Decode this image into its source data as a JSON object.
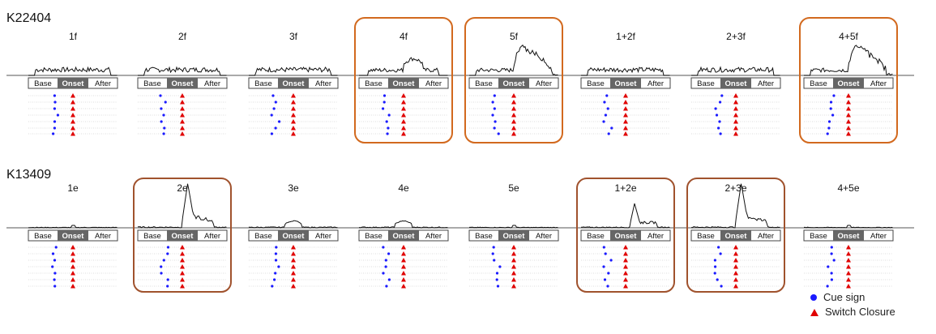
{
  "chart_data": {
    "type": "line",
    "segments": [
      "Base",
      "Onset",
      "After"
    ],
    "colors": {
      "trace": "#111111",
      "cue": "#1a1aff",
      "switch": "#e00000",
      "highlight_top": "#d2691e",
      "highlight_bottom": "#a0522d",
      "onset_fill": "#666666"
    },
    "panels": [
      {
        "id": "K22404",
        "conditions": [
          {
            "label": "1f",
            "highlighted": false,
            "response": "low"
          },
          {
            "label": "2f",
            "highlighted": false,
            "response": "low"
          },
          {
            "label": "3f",
            "highlighted": false,
            "response": "low"
          },
          {
            "label": "4f",
            "highlighted": true,
            "response": "medium"
          },
          {
            "label": "5f",
            "highlighted": true,
            "response": "high"
          },
          {
            "label": "1+2f",
            "highlighted": false,
            "response": "low"
          },
          {
            "label": "2+3f",
            "highlighted": false,
            "response": "low"
          },
          {
            "label": "4+5f",
            "highlighted": true,
            "response": "high"
          }
        ]
      },
      {
        "id": "K13409",
        "conditions": [
          {
            "label": "1e",
            "highlighted": false,
            "response": "none"
          },
          {
            "label": "2e",
            "highlighted": true,
            "response": "peak"
          },
          {
            "label": "3e",
            "highlighted": false,
            "response": "small"
          },
          {
            "label": "4e",
            "highlighted": false,
            "response": "small"
          },
          {
            "label": "5e",
            "highlighted": false,
            "response": "none"
          },
          {
            "label": "1+2e",
            "highlighted": true,
            "response": "medium-peak"
          },
          {
            "label": "2+3e",
            "highlighted": true,
            "response": "peak"
          },
          {
            "label": "4+5e",
            "highlighted": false,
            "response": "none"
          }
        ]
      }
    ],
    "legend": [
      {
        "label": "Cue sign",
        "marker": "circle",
        "color": "#1a1aff"
      },
      {
        "label": "Switch Closure",
        "marker": "triangle",
        "color": "#e00000"
      }
    ]
  }
}
